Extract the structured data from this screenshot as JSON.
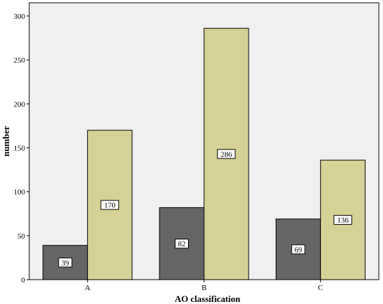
{
  "chart_data": {
    "type": "bar",
    "xlabel": "AO classification",
    "ylabel": "number",
    "categories": [
      "A",
      "B",
      "C"
    ],
    "series": [
      {
        "values": [
          39,
          82,
          69
        ],
        "color": "#666666"
      },
      {
        "values": [
          170,
          286,
          136
        ],
        "color": "#d6d196"
      }
    ],
    "ylim": [
      0,
      315
    ],
    "yticks": [
      0,
      50,
      100,
      150,
      200,
      250,
      300
    ],
    "plot_background": "#f0f0f0",
    "bar_border_color": "#000000",
    "grid": false,
    "legend": "none"
  }
}
